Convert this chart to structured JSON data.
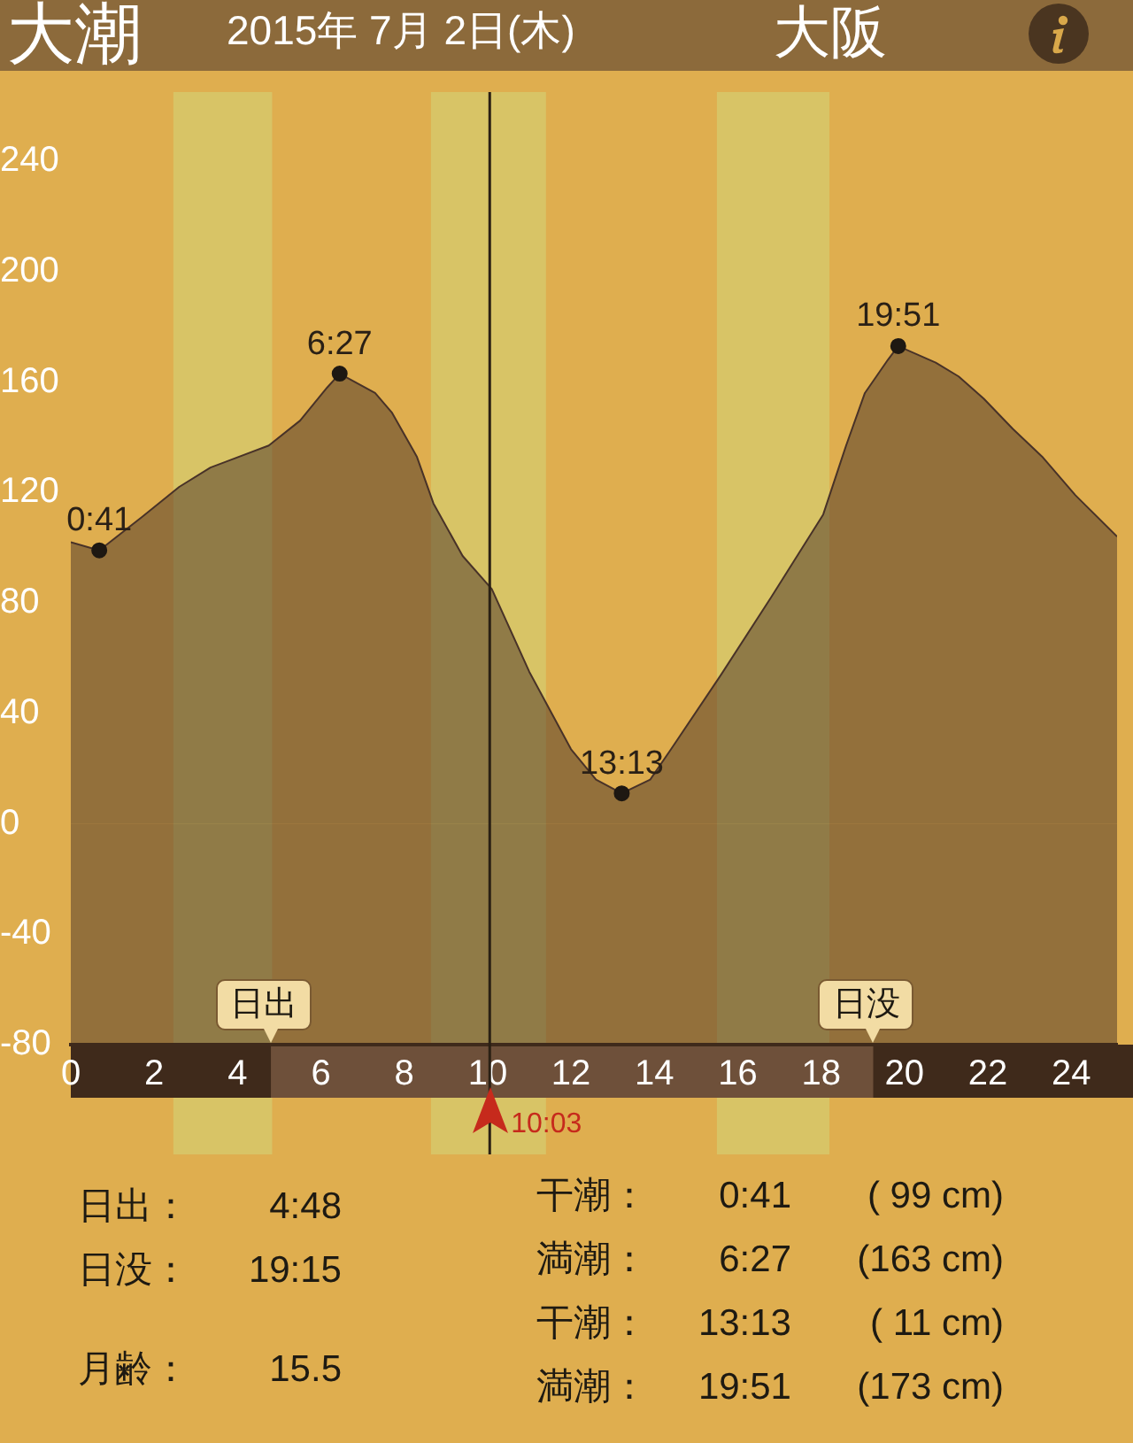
{
  "chart_data": {
    "type": "area",
    "title": "大潮",
    "subtitle": "2015年 7月 2日(木)",
    "annotations": [
      "大阪",
      "日出：",
      "4:48",
      "日没：",
      "19:15",
      "月齢：",
      "15.5",
      "干潮：",
      "0:41",
      "( 99 cm)",
      "満潮：",
      "6:27",
      "(163 cm)",
      "干潮：",
      "13:13",
      "( 11 cm)",
      "満潮：",
      "19:51",
      "(173 cm)",
      {
        "text": "0:41",
        "x": 0.683,
        "y": 99
      },
      {
        "text": "6:27",
        "x": 6.45,
        "y": 163
      },
      {
        "text": "13:13",
        "x": 13.217,
        "y": 11
      },
      {
        "text": "19:51",
        "x": 19.85,
        "y": 173
      },
      {
        "text": "日出",
        "x": 4.8,
        "y": -80
      },
      {
        "text": "日没",
        "x": 19.25,
        "y": -80
      }
    ],
    "series": [
      {
        "color": "#483228",
        "x": [
          0,
          0.683,
          1.7,
          2.6,
          3.35,
          4.75,
          5.5,
          6.15,
          6.45,
          7.3,
          7.7,
          8.3,
          8.7,
          9.4,
          10.1,
          11.0,
          12.0,
          12.6,
          13.217,
          13.9,
          14.4,
          15.6,
          16.8,
          18.05,
          18.6,
          19.05,
          19.6,
          19.85,
          20.75,
          21.3,
          21.9,
          22.6,
          23.3,
          24.1,
          25.1
        ],
        "values": [
          102,
          99,
          111,
          122,
          129,
          137,
          146,
          158,
          163,
          156,
          149,
          133,
          116,
          97,
          85,
          55,
          27,
          16,
          11,
          16,
          27,
          54,
          82,
          112,
          137,
          156,
          168,
          173,
          167,
          162,
          154,
          143,
          133,
          119,
          104
        ]
      },
      {
        "type": "scatter",
        "color": "#1e1812",
        "marker": "circle",
        "x": [
          0.683,
          6.45,
          13.217,
          19.85
        ],
        "values": [
          99,
          163,
          11,
          173
        ]
      }
    ],
    "xlim": [
      0,
      25.1
    ],
    "xticks": [
      0,
      2,
      4,
      6,
      8,
      10,
      12,
      14,
      16,
      18,
      20,
      22,
      24
    ],
    "ylim": [
      -80,
      265
    ],
    "yticks": [
      -80,
      -40,
      0,
      40,
      80,
      120,
      160,
      200,
      240
    ],
    "grid": false,
    "legend": false,
    "bands": [
      {
        "axis": "x",
        "from": 2.46,
        "to": 4.83,
        "color": "#d8c466"
      },
      {
        "axis": "x",
        "from": 8.64,
        "to": 11.4,
        "color": "#d8c466"
      },
      {
        "axis": "x",
        "from": 15.5,
        "to": 18.2,
        "color": "#d8c466"
      },
      {
        "axis": "y",
        "from": -80,
        "to": 0,
        "color": "#483228"
      }
    ],
    "ref_lines": [
      {
        "axis": "x",
        "value": 10.05,
        "label": "10:03",
        "color": "#2a2014"
      }
    ]
  }
}
